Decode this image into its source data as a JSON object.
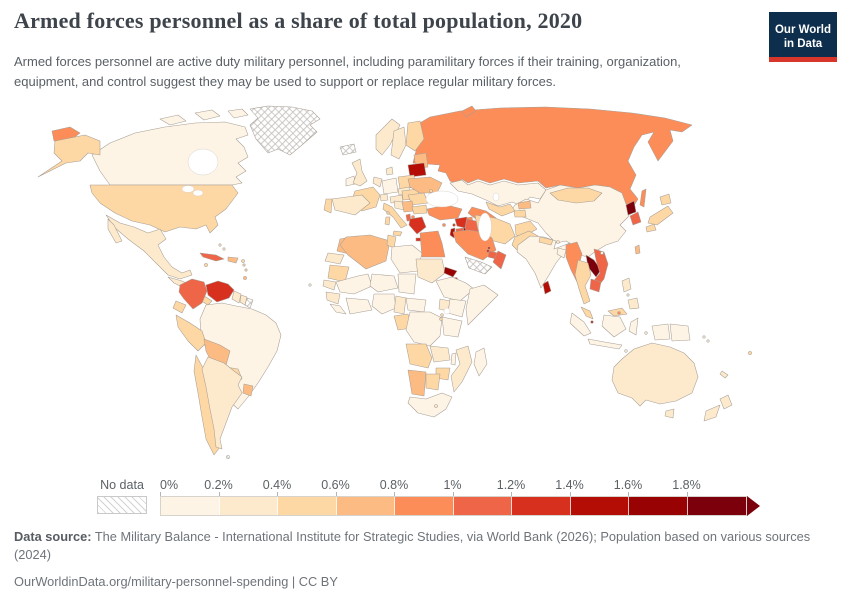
{
  "header": {
    "title": "Armed forces personnel as a share of total population, 2020",
    "subtitle": "Armed forces personnel are active duty military personnel, including paramilitary forces if their training, organization, equipment, and control suggest they may be used to support or replace regular military forces.",
    "logo_line1": "Our World",
    "logo_line2": "in Data",
    "logo_bg_color": "#0d2e4d",
    "logo_accent_color": "#d8352b"
  },
  "chart_data": {
    "type": "choropleth",
    "title": "Armed forces personnel as a share of total population",
    "year": "2020",
    "unit": "% of total population",
    "legend": {
      "no_data_label": "No data",
      "tick_labels": [
        "0%",
        "0.2%",
        "0.4%",
        "0.6%",
        "0.8%",
        "1%",
        "1.2%",
        "1.4%",
        "1.6%",
        "1.8%"
      ],
      "bin_ranges": [
        "0-0.2%",
        "0.2-0.4%",
        "0.4-0.6%",
        "0.6-0.8%",
        "0.8-1%",
        "1-1.2%",
        "1.2-1.4%",
        "1.4-1.6%",
        "1.6-1.8%",
        ">1.8%"
      ],
      "colors": [
        "#fdf4e5",
        "#fdeacd",
        "#fdd7a4",
        "#fdbb84",
        "#fc8d59",
        "#ee6547",
        "#d7301f",
        "#b30d05",
        "#990202",
        "#7b000b"
      ],
      "no_data_pattern": "diagonal-hatch"
    },
    "regions": {
      "usa": 2,
      "canada": 0,
      "greenland": "nodata",
      "mexico": 1,
      "guatemala-honduras": 1,
      "nicaragua-panama": 2,
      "cuba": 5,
      "jamaica": 2,
      "hispaniola": 3,
      "puerto-rico": 2,
      "bahamas": 1,
      "trinidad": 3,
      "lesser-antilles": 2,
      "colombia": 5,
      "venezuela": 6,
      "guyana": 1,
      "suriname": 1,
      "french-guiana": "nodata",
      "ecuador": 2,
      "peru": 2,
      "brazil": 0,
      "bolivia": 3,
      "paraguay": 2,
      "chile": 2,
      "argentina": 1,
      "uruguay": 3,
      "falkland": "nodata",
      "iceland": "nodata",
      "ireland": 0,
      "uk": 1,
      "norway": 1,
      "sweden": 1,
      "finland": 2,
      "denmark": 1,
      "baltics": 3,
      "germany": 0,
      "benelux": 1,
      "france": 2,
      "spain": 1,
      "portugal": 2,
      "switzerland": 1,
      "czech": 1,
      "austria": 1,
      "italy": 2,
      "poland": 2,
      "slovakia-hungary": 2,
      "belarus": 7,
      "ukraine": 3,
      "moldova": 2,
      "romania": 2,
      "serbia": 3,
      "croatia-bosnia": 1,
      "bulgaria": 2,
      "albania": 5,
      "macedonia": 4,
      "greece": 6,
      "cyprus": 4,
      "russia": 4,
      "kazakhstan": 0,
      "uzbekistan": 2,
      "turkmenistan": 4,
      "kyrgyzstan": 3,
      "tajikistan": 2,
      "georgia": 4,
      "armenia": 8,
      "azerbaijan": 5,
      "turkey": 4,
      "syria": 6,
      "lebanon": 6,
      "israel": 7,
      "jordan": 5,
      "iraq": 5,
      "kuwait": 7,
      "saudi-arabia": 4,
      "qatar": 6,
      "bahrain": 7,
      "uae": 5,
      "oman": 5,
      "yemen": "nodata",
      "iran": 2,
      "afghanistan": 2,
      "pakistan": 2,
      "india": 0,
      "nepal": 2,
      "bhutan": 1,
      "bangladesh": 0,
      "sri-lanka": 7,
      "myanmar": 4,
      "thailand": 2,
      "laos": 9,
      "vietnam": 5,
      "cambodia": 5,
      "malaysia": 2,
      "brunei": 4,
      "singapore": 7,
      "indonesia": 0,
      "papua-new-guinea": 0,
      "philippines": 1,
      "taiwan": 3,
      "china": 0,
      "mongolia": 2,
      "north-korea": 9,
      "south-korea": 5,
      "japan": 2,
      "morocco": 3,
      "western-sahara": 1,
      "algeria": 3,
      "tunisia": 2,
      "libya": 0,
      "egypt": 4,
      "mauritania": 2,
      "mali": 0,
      "niger": 0,
      "chad": 0,
      "sudan": 1,
      "eritrea": 8,
      "djibouti": 6,
      "ethiopia": 0,
      "somalia": 0,
      "senegal": 1,
      "guinea": 1,
      "sierra-leone-liberia": 0,
      "ivory-coast-ghana": 0,
      "nigeria": 0,
      "cameroon": 1,
      "central-african-republic": 0,
      "gabon-congo": 2,
      "dr-congo": 0,
      "uganda": 1,
      "kenya": 0,
      "rwanda-burundi": 2,
      "tanzania": 0,
      "angola": 2,
      "zambia": 1,
      "malawi": 0,
      "mozambique": 1,
      "zimbabwe": 2,
      "namibia": 3,
      "botswana": 2,
      "south-africa": 0,
      "lesotho": 1,
      "madagascar": 0,
      "australia": 1,
      "new-zealand": 1,
      "fiji": 2,
      "new-caledonia": 1,
      "solomon-islands": 0,
      "cape-verde": 0
    }
  },
  "footer": {
    "source_label": "Data source:",
    "source_text": " The Military Balance - International Institute for Strategic Studies, via World Bank (2026); Population based on various sources (2024)",
    "link_text": "OurWorldinData.org/military-personnel-spending | CC BY"
  }
}
